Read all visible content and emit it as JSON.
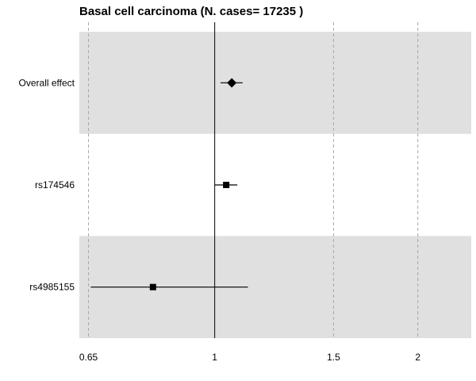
{
  "chart_data": {
    "type": "forest",
    "title": "Basal cell carcinoma  (N. cases= 17235 )",
    "x_scale": "log",
    "xlim": [
      0.63,
      2.4
    ],
    "x_ticks": [
      0.65,
      1,
      1.5,
      2
    ],
    "x_tick_labels": [
      "0.65",
      "1",
      "1.5",
      "2"
    ],
    "reference_line": 1,
    "grid": "vertical dashed at ticks",
    "band_color": "#e0e0e0",
    "rows": [
      {
        "label": "Overall effect",
        "estimate": 1.06,
        "lower": 1.02,
        "upper": 1.1,
        "marker": "diamond",
        "shaded": true
      },
      {
        "label": "rs174546",
        "estimate": 1.04,
        "lower": 1.0,
        "upper": 1.08,
        "marker": "square",
        "shaded": false
      },
      {
        "label": "rs4985155",
        "estimate": 0.81,
        "lower": 0.655,
        "upper": 1.12,
        "marker": "square",
        "shaded": true
      }
    ]
  }
}
